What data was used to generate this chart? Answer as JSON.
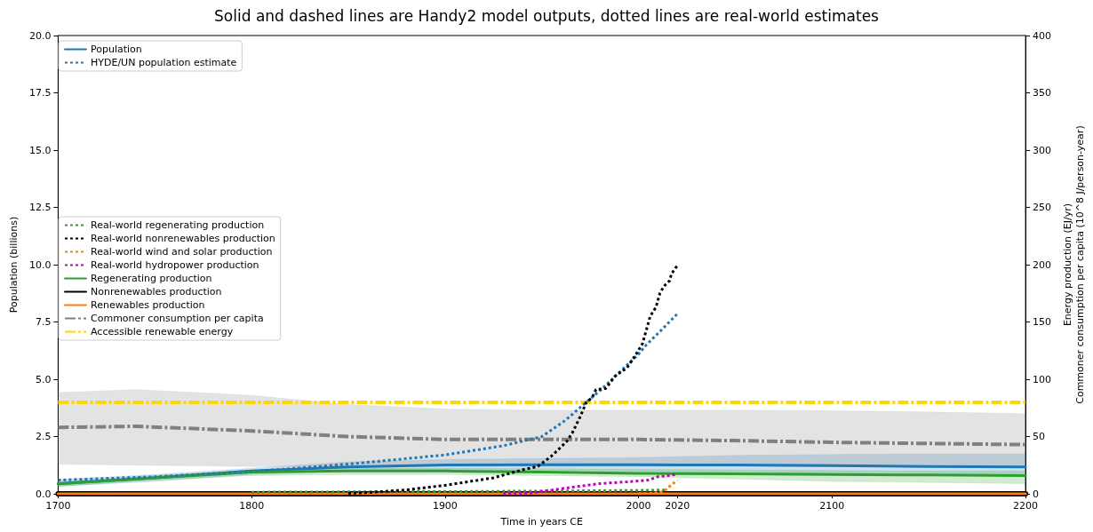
{
  "chart_data": {
    "type": "line",
    "title": "Solid and dashed lines are Handy2 model outputs, dotted lines are real-world estimates",
    "xlabel": "Time in years CE",
    "ylabel": "Population (billions)",
    "y2label": "Energy production (EJ/yr)\nCommoner consumption per capita (10^8 J/person-year)",
    "xlim": [
      1700,
      2200
    ],
    "xticks": [
      1700,
      1800,
      1900,
      2000,
      2020,
      2100,
      2200
    ],
    "ylim": [
      0,
      20
    ],
    "yticks": [
      {
        "value": 0,
        "label": "0.0"
      },
      2.5,
      {
        "value": 5,
        "label": "5.0"
      },
      7.5,
      {
        "value": 10,
        "label": "10.0"
      },
      12.5,
      {
        "value": 15,
        "label": "15.0"
      },
      17.5,
      {
        "value": 20,
        "label": "20.0"
      }
    ],
    "y2lim": [
      0,
      400
    ],
    "y2ticks": [
      0,
      50,
      100,
      150,
      200,
      250,
      300,
      350,
      400
    ],
    "legend": "top left",
    "marker": "none",
    "series": [
      {
        "name": "Population",
        "color": "#1f77b4",
        "line_style": "solid",
        "axis": "y",
        "x": [
          1700,
          1750,
          1800,
          1850,
          1900,
          1950,
          2000,
          2050,
          2100,
          2150,
          2200
        ],
        "values": [
          0.45,
          0.7,
          1.0,
          1.18,
          1.26,
          1.27,
          1.27,
          1.26,
          1.23,
          1.2,
          1.18
        ],
        "upper": [
          0.62,
          0.85,
          1.12,
          1.4,
          1.5,
          1.54,
          1.58,
          1.68,
          1.72,
          1.74,
          1.74
        ],
        "lower": [
          0.33,
          0.55,
          0.85,
          1.0,
          1.05,
          1.02,
          0.98,
          0.92,
          0.87,
          0.83,
          0.8
        ]
      },
      {
        "name": "HYDE/UN population estimate",
        "color": "#1f77b4",
        "line_style": "dotted",
        "axis": "y",
        "x": [
          1700,
          1750,
          1800,
          1850,
          1900,
          1930,
          1943,
          1950,
          1962,
          1973,
          1980,
          1990,
          2000,
          2004,
          2010,
          2020
        ],
        "values": [
          0.6,
          0.75,
          0.97,
          1.3,
          1.7,
          2.1,
          2.36,
          2.5,
          3.2,
          4.0,
          4.5,
          5.3,
          6.1,
          6.5,
          7.0,
          7.85
        ]
      },
      {
        "name": "Real-world regenerating production",
        "color": "#2ca02c",
        "line_style": "dotted",
        "axis": "y2",
        "x": [
          1800,
          1900,
          1950,
          2000,
          2015
        ],
        "values": [
          1.5,
          2,
          2.5,
          3,
          3.5
        ]
      },
      {
        "name": "Real-world nonrenewables production",
        "color": "#000000",
        "line_style": "dotted",
        "axis": "y2",
        "x": [
          1850,
          1860,
          1880,
          1900,
          1925,
          1940,
          1948,
          1955,
          1963,
          1966,
          1970,
          1973,
          1976,
          1978,
          1983,
          1988,
          1994,
          1998,
          2002,
          2006,
          2009,
          2011,
          2013,
          2016,
          2017,
          2019,
          2020
        ],
        "values": [
          0.5,
          1.2,
          3.5,
          7.5,
          14,
          21,
          24,
          33,
          46,
          54,
          68,
          80,
          84,
          91,
          92,
          103,
          110,
          120,
          131,
          155,
          163,
          175,
          181,
          186,
          192,
          197,
          199
        ]
      },
      {
        "name": "Real-world wind and solar production",
        "color": "#ff7f0e",
        "line_style": "dotted",
        "axis": "y2",
        "x": [
          2000,
          2005,
          2010,
          2013,
          2016,
          2020
        ],
        "values": [
          0.2,
          0.5,
          1,
          2,
          6.5,
          12
        ]
      },
      {
        "name": "Real-world hydropower production",
        "color": "#bf00bf",
        "line_style": "dotted",
        "axis": "y2",
        "x": [
          1930,
          1944,
          1962,
          1980,
          1998,
          2005,
          2010,
          2020
        ],
        "values": [
          0,
          0.7,
          5,
          9,
          11,
          12,
          15,
          17
        ]
      },
      {
        "name": "Regenerating production",
        "color": "#2ca02c",
        "line_style": "solid",
        "axis": "y2",
        "x": [
          1700,
          1750,
          1800,
          1850,
          1900,
          1950,
          2000,
          2050,
          2100,
          2150,
          2200
        ],
        "values": [
          8.7,
          14,
          19,
          20,
          20,
          19,
          18,
          17.5,
          17,
          16.5,
          16
        ],
        "upper": [
          10.5,
          16,
          21,
          22.5,
          22.5,
          22,
          21.5,
          21,
          20.5,
          20,
          20
        ],
        "lower": [
          6.5,
          12,
          16,
          17,
          17,
          16,
          15,
          13,
          11,
          10,
          9
        ]
      },
      {
        "name": "Nonrenewables production",
        "color": "#000000",
        "line_style": "solid",
        "axis": "y2",
        "x": [
          1700,
          2200
        ],
        "values": [
          0,
          0
        ]
      },
      {
        "name": "Renewables production",
        "color": "#ff7f0e",
        "line_style": "solid",
        "axis": "y2",
        "x": [
          1700,
          2200
        ],
        "values": [
          0,
          0
        ]
      },
      {
        "name": "Commoner consumption per capita",
        "color": "#808080",
        "line_style": "dashed",
        "axis": "y2",
        "x": [
          1700,
          1740,
          1800,
          1850,
          1900,
          1950,
          2000,
          2050,
          2100,
          2150,
          2200
        ],
        "values": [
          58,
          59,
          55,
          50,
          47.5,
          47.5,
          47.5,
          46.5,
          45,
          44,
          43
        ],
        "upper": [
          88.5,
          91,
          86,
          78,
          74,
          73,
          73,
          73,
          72.5,
          71.5,
          70
        ],
        "lower": [
          26,
          25,
          24,
          24,
          24,
          24,
          24,
          24,
          24,
          24,
          24
        ]
      },
      {
        "name": "Accessible renewable energy",
        "color": "#ffd700",
        "line_style": "dashed",
        "axis": "y2",
        "x": [
          1700,
          2200
        ],
        "values": [
          80,
          80
        ]
      }
    ]
  }
}
